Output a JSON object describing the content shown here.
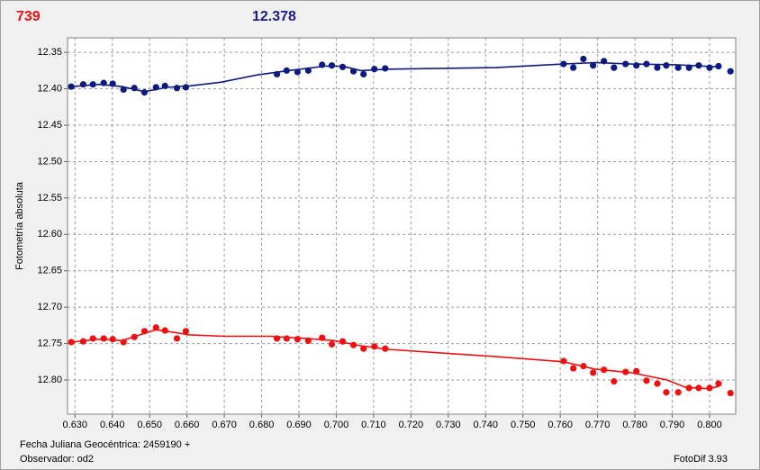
{
  "chart_data": {
    "type": "scatter",
    "header_labels": [
      {
        "text": "739",
        "color": "#e81010"
      },
      {
        "text": "12.378",
        "color": "#1a1a8a"
      }
    ],
    "xlabel": "Fecha Juliana Geocéntrica: 2459190 +",
    "ylabel": "Fotometría absoluta",
    "footer_left": "Observador: od2",
    "footer_right": "FotoDif 3.93",
    "grid": true,
    "xlim": [
      0.628,
      0.807
    ],
    "ylim": [
      12.847,
      12.33
    ],
    "xticks": [
      {
        "value": 0.63,
        "label": "0.630"
      },
      {
        "value": 0.64,
        "label": "0.640"
      },
      {
        "value": 0.65,
        "label": "0.650"
      },
      {
        "value": 0.66,
        "label": "0.660"
      },
      {
        "value": 0.67,
        "label": "0.670"
      },
      {
        "value": 0.68,
        "label": "0.680"
      },
      {
        "value": 0.69,
        "label": "0.690"
      },
      {
        "value": 0.7,
        "label": "0.700"
      },
      {
        "value": 0.71,
        "label": "0.710"
      },
      {
        "value": 0.72,
        "label": "0.720"
      },
      {
        "value": 0.73,
        "label": "0.730"
      },
      {
        "value": 0.74,
        "label": "0.740"
      },
      {
        "value": 0.75,
        "label": "0.750"
      },
      {
        "value": 0.76,
        "label": "0.760"
      },
      {
        "value": 0.77,
        "label": "0.770"
      },
      {
        "value": 0.78,
        "label": "0.780"
      },
      {
        "value": 0.79,
        "label": "0.790"
      },
      {
        "value": 0.8,
        "label": "0.800"
      }
    ],
    "yticks": [
      12.35,
      {
        "value": 12.4,
        "label": "12.40"
      },
      12.45,
      {
        "value": 12.5,
        "label": "12.50"
      },
      12.55,
      {
        "value": 12.6,
        "label": "12.60"
      },
      12.65,
      {
        "value": 12.7,
        "label": "12.70"
      },
      12.75,
      {
        "value": 12.8,
        "label": "12.80"
      }
    ],
    "x": [
      0.629,
      0.6322,
      0.6348,
      0.6377,
      0.6401,
      0.643,
      0.6459,
      0.6486,
      0.6517,
      0.6541,
      0.6573,
      0.6597,
      0.6841,
      0.6867,
      0.6896,
      0.6925,
      0.6962,
      0.6988,
      0.7017,
      0.7046,
      0.7073,
      0.7102,
      0.7131,
      0.7609,
      0.7635,
      0.7662,
      0.7688,
      0.7717,
      0.7744,
      0.7775,
      0.7804,
      0.7831,
      0.786,
      0.7884,
      0.7916,
      0.7945,
      0.7971,
      0.8,
      0.8024,
      0.8056
    ],
    "series": [
      {
        "color": "#0d1a80",
        "values": [
          12.397,
          12.394,
          12.394,
          12.392,
          12.393,
          12.401,
          12.399,
          12.405,
          12.398,
          12.396,
          12.399,
          12.398,
          12.38,
          12.375,
          12.377,
          12.375,
          12.367,
          12.368,
          12.37,
          12.376,
          12.38,
          12.373,
          12.372,
          12.366,
          12.371,
          12.359,
          12.368,
          12.362,
          12.371,
          12.366,
          12.368,
          12.366,
          12.371,
          12.368,
          12.371,
          12.371,
          12.368,
          12.371,
          12.369,
          12.376
        ],
        "trend": {
          "x": [
            0.629,
            0.6365,
            0.6426,
            0.6486,
            0.6546,
            0.6607,
            0.6691,
            0.6788,
            0.6872,
            0.6969,
            0.7017,
            0.7066,
            0.7138,
            0.7428,
            0.7609,
            0.7693,
            0.779,
            0.7911,
            0.8024
          ],
          "values": [
            12.397,
            12.394,
            12.397,
            12.404,
            12.398,
            12.396,
            12.391,
            12.381,
            12.375,
            12.369,
            12.369,
            12.375,
            12.373,
            12.371,
            12.366,
            12.364,
            12.366,
            12.367,
            12.37
          ]
        }
      },
      {
        "color": "#f01010",
        "values": [
          12.748,
          12.747,
          12.743,
          12.743,
          12.744,
          12.748,
          12.741,
          12.733,
          12.728,
          12.732,
          12.743,
          12.733,
          12.743,
          12.743,
          12.744,
          12.746,
          12.742,
          12.751,
          12.747,
          12.752,
          12.757,
          12.754,
          12.757,
          12.774,
          12.784,
          12.781,
          12.79,
          12.786,
          12.802,
          12.789,
          12.788,
          12.801,
          12.805,
          12.817,
          12.817,
          12.811,
          12.811,
          12.811,
          12.805,
          12.818
        ],
        "trend": {
          "x": [
            0.629,
            0.6365,
            0.6426,
            0.6474,
            0.6517,
            0.657,
            0.6607,
            0.6704,
            0.6824,
            0.6921,
            0.6993,
            0.7066,
            0.7138,
            0.7428,
            0.7609,
            0.7693,
            0.779,
            0.7886,
            0.7935,
            0.7995,
            0.8024
          ],
          "values": [
            12.748,
            12.744,
            12.746,
            12.738,
            12.731,
            12.735,
            12.738,
            12.74,
            12.74,
            12.743,
            12.746,
            12.753,
            12.758,
            12.768,
            12.775,
            12.785,
            12.79,
            12.8,
            12.81,
            12.812,
            12.809
          ]
        }
      }
    ]
  }
}
